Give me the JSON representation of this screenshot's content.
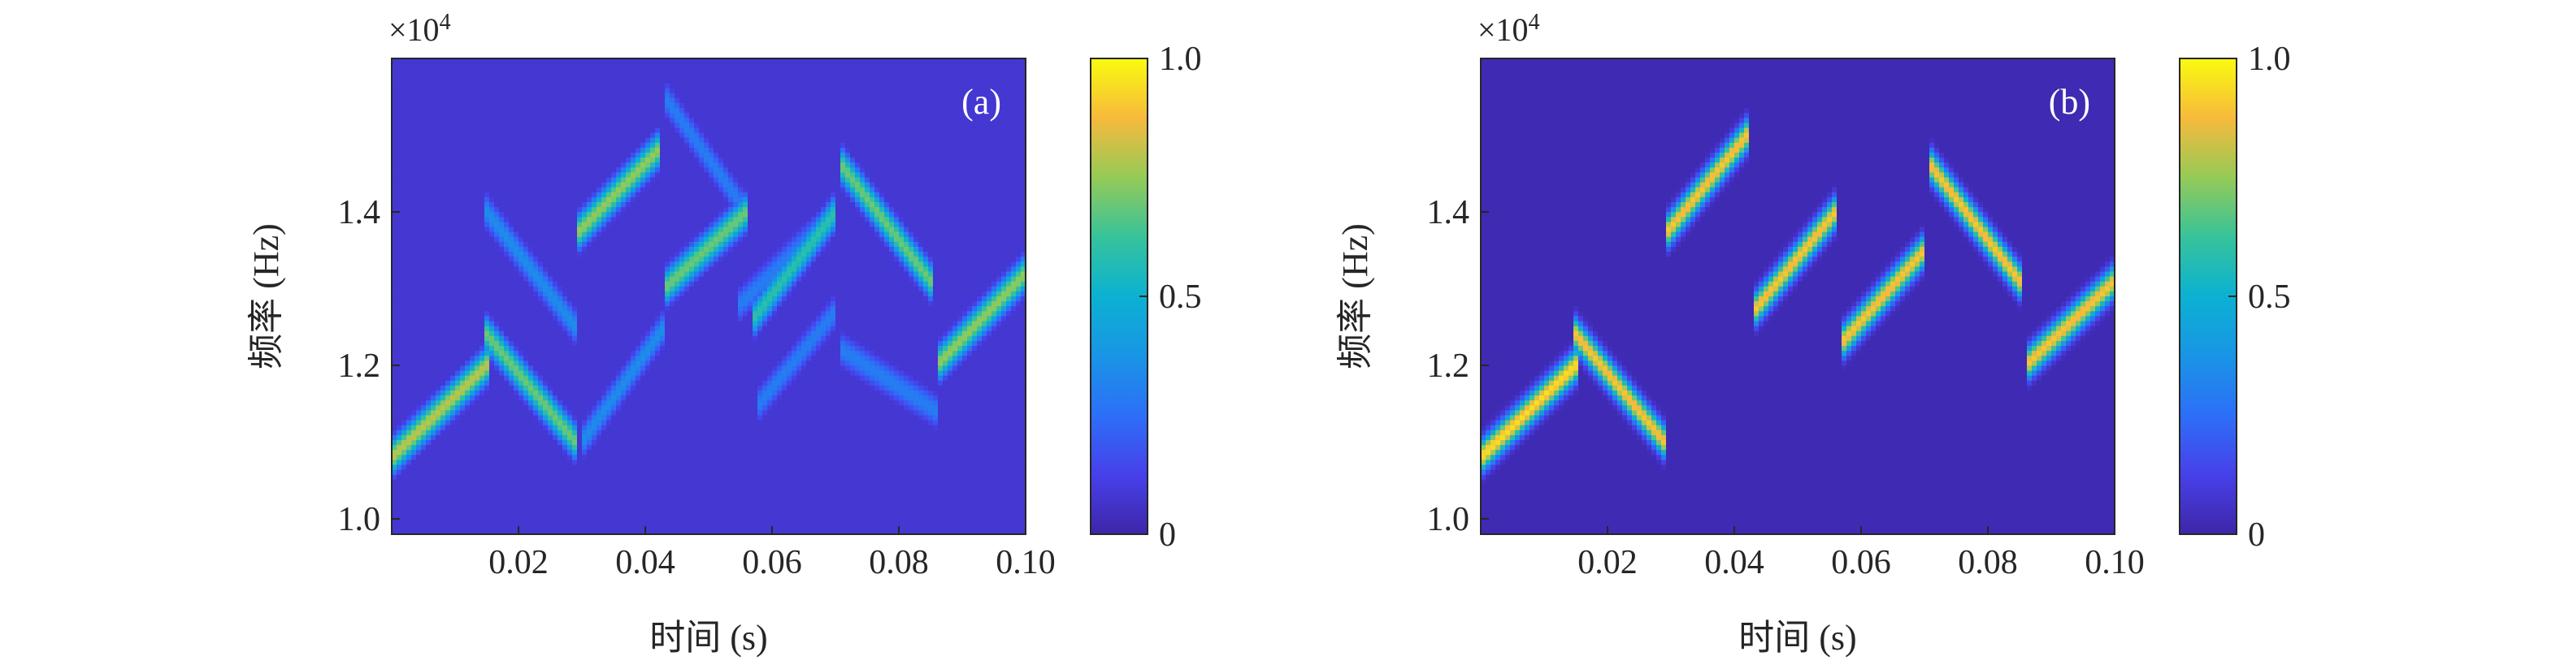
{
  "chart_data": [
    {
      "type": "heatmap",
      "panel_label": "(a)",
      "xlabel": "时间 (s)",
      "ylabel": "频率 (Hz)",
      "y_exponent_label": "×10",
      "y_exponent_power": "4",
      "xlim": [
        0,
        0.1
      ],
      "ylim": [
        0.98,
        1.6
      ],
      "xticks": [
        0.02,
        0.04,
        0.06,
        0.08,
        0.1
      ],
      "xtick_labels": [
        "0.02",
        "0.04",
        "0.06",
        "0.08",
        "0.10"
      ],
      "yticks": [
        1.0,
        1.2,
        1.4
      ],
      "ytick_labels": [
        "1.0",
        "1.2",
        "1.4"
      ],
      "colorbar": {
        "range": [
          0,
          1
        ],
        "ticks": [
          0,
          0.5,
          1.0
        ],
        "tick_labels": [
          "0",
          "0.5",
          "1.0"
        ],
        "colormap": "parula"
      },
      "background_level": 0.08,
      "ridges": [
        {
          "x": [
            0.0,
            0.015
          ],
          "y": [
            1.08,
            1.2
          ],
          "level": 0.8
        },
        {
          "x": [
            0.015,
            0.029
          ],
          "y": [
            1.24,
            1.1
          ],
          "level": 0.7
        },
        {
          "x": [
            0.029,
            0.042
          ],
          "y": [
            1.37,
            1.48
          ],
          "level": 0.75
        },
        {
          "x": [
            0.043,
            0.056
          ],
          "y": [
            1.3,
            1.4
          ],
          "level": 0.7
        },
        {
          "x": [
            0.057,
            0.07
          ],
          "y": [
            1.26,
            1.4
          ],
          "level": 0.6
        },
        {
          "x": [
            0.071,
            0.085
          ],
          "y": [
            1.46,
            1.31
          ],
          "level": 0.7
        },
        {
          "x": [
            0.086,
            0.1
          ],
          "y": [
            1.2,
            1.32
          ],
          "level": 0.75
        },
        {
          "x": [
            0.015,
            0.029
          ],
          "y": [
            1.4,
            1.25
          ],
          "level": 0.35
        },
        {
          "x": [
            0.03,
            0.043
          ],
          "y": [
            1.1,
            1.25
          ],
          "level": 0.35
        },
        {
          "x": [
            0.043,
            0.056
          ],
          "y": [
            1.55,
            1.4
          ],
          "level": 0.3
        },
        {
          "x": [
            0.055,
            0.07
          ],
          "y": [
            1.28,
            1.4
          ],
          "level": 0.3
        },
        {
          "x": [
            0.071,
            0.086
          ],
          "y": [
            1.22,
            1.14
          ],
          "level": 0.3
        },
        {
          "x": [
            0.058,
            0.07
          ],
          "y": [
            1.15,
            1.27
          ],
          "level": 0.3
        }
      ]
    },
    {
      "type": "heatmap",
      "panel_label": "(b)",
      "xlabel": "时间 (s)",
      "ylabel": "频率 (Hz)",
      "y_exponent_label": "×10",
      "y_exponent_power": "4",
      "xlim": [
        0,
        0.1
      ],
      "ylim": [
        0.98,
        1.6
      ],
      "xticks": [
        0.02,
        0.04,
        0.06,
        0.08,
        0.1
      ],
      "xtick_labels": [
        "0.02",
        "0.04",
        "0.06",
        "0.08",
        "0.10"
      ],
      "yticks": [
        1.0,
        1.2,
        1.4
      ],
      "ytick_labels": [
        "1.0",
        "1.2",
        "1.4"
      ],
      "colorbar": {
        "range": [
          0,
          1
        ],
        "ticks": [
          0,
          0.5,
          1.0
        ],
        "tick_labels": [
          "0",
          "0.5",
          "1.0"
        ],
        "colormap": "parula"
      },
      "background_level": 0.02,
      "ridges": [
        {
          "x": [
            0.0,
            0.015
          ],
          "y": [
            1.08,
            1.2
          ],
          "level": 0.95
        },
        {
          "x": [
            0.015,
            0.029
          ],
          "y": [
            1.24,
            1.1
          ],
          "level": 0.9
        },
        {
          "x": [
            0.029,
            0.042
          ],
          "y": [
            1.37,
            1.5
          ],
          "level": 0.9
        },
        {
          "x": [
            0.043,
            0.056
          ],
          "y": [
            1.27,
            1.4
          ],
          "level": 0.9
        },
        {
          "x": [
            0.057,
            0.07
          ],
          "y": [
            1.23,
            1.35
          ],
          "level": 0.9
        },
        {
          "x": [
            0.071,
            0.085
          ],
          "y": [
            1.46,
            1.31
          ],
          "level": 0.9
        },
        {
          "x": [
            0.086,
            0.1
          ],
          "y": [
            1.2,
            1.31
          ],
          "level": 0.9
        }
      ]
    }
  ]
}
